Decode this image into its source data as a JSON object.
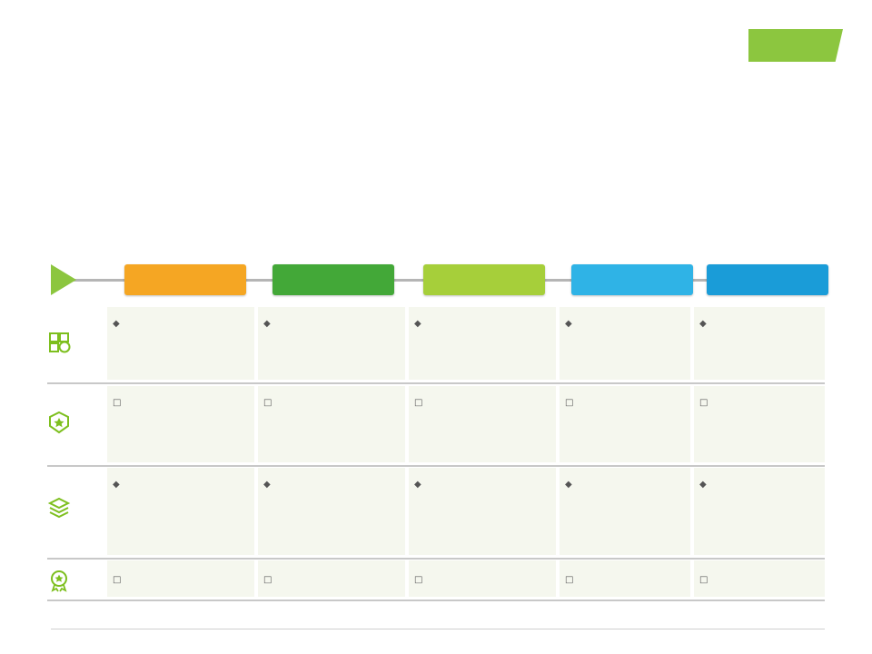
{
  "header": {
    "title": "",
    "subtitle": ""
  },
  "intro": "",
  "logo": {
    "text": "",
    "subtext": ""
  },
  "chart_title": "",
  "categories": [
    {
      "label": "",
      "color": "#f5a623"
    },
    {
      "label": "",
      "color": "#43a838"
    },
    {
      "label": "",
      "color": "#a6cf3a"
    },
    {
      "label": "",
      "color": "#2fb3e6"
    },
    {
      "label": "",
      "color": "#1a9cd8"
    }
  ],
  "rows": [
    {
      "label": "",
      "icon": "puzzle-coins-icon",
      "marker": "◆",
      "cells": [
        "",
        "",
        "",
        "",
        ""
      ]
    },
    {
      "label": "",
      "icon": "star-badge-icon",
      "marker": "□",
      "cells": [
        "",
        "",
        "",
        "",
        ""
      ]
    },
    {
      "label": "",
      "icon": "layers-icon",
      "marker": "◆",
      "cells": [
        "",
        "",
        "",
        "",
        ""
      ]
    },
    {
      "label": "",
      "icon": "medal-icon",
      "marker": "□",
      "cells": [
        "",
        "",
        "",
        "",
        ""
      ]
    }
  ],
  "footer": {
    "source": "",
    "copyright": "",
    "website": "",
    "page": ""
  }
}
